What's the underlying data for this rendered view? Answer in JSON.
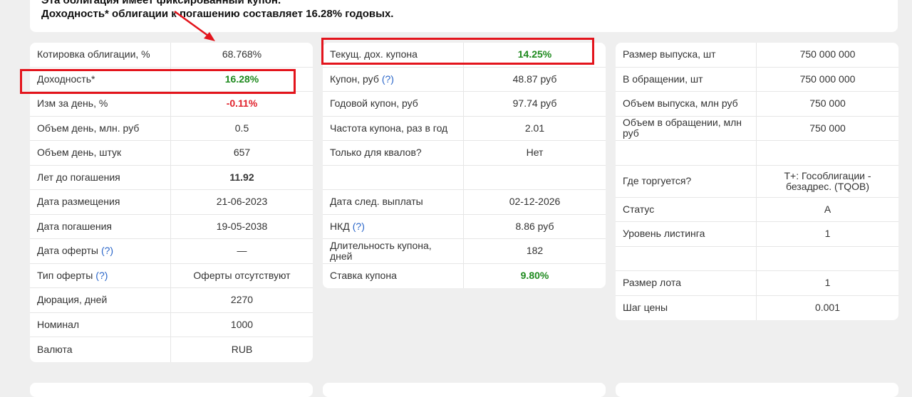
{
  "notice": {
    "line1": "Эта облигация имеет фиксированный купон.",
    "line2": "Доходность* облигации к погашению составляет 16.28% годовых."
  },
  "tables": [
    {
      "rows": [
        {
          "label": "Котировка облигации, %",
          "value": "68.768%"
        },
        {
          "label": "Доходность*",
          "value": "16.28%",
          "color": "#1e8a1e",
          "bold": true
        },
        {
          "label": "Изм за день, %",
          "value": "-0.11%",
          "color": "#e0212b",
          "bold": true
        },
        {
          "label": "Объем день, млн. руб",
          "value": "0.5"
        },
        {
          "label": "Объем день, штук",
          "value": "657"
        },
        {
          "label": "Лет до погашения",
          "value": "11.92",
          "bold": true
        },
        {
          "label": "Дата размещения",
          "value": "21-06-2023"
        },
        {
          "label": "Дата погашения",
          "value": "19-05-2038"
        },
        {
          "label": "Дата оферты",
          "hint": "(?)",
          "value": "—"
        },
        {
          "label": "Тип оферты",
          "hint": "(?)",
          "value": "Оферты отсутствуют"
        },
        {
          "label": "Дюрация, дней",
          "value": "2270"
        },
        {
          "label": "Номинал",
          "value": "1000"
        },
        {
          "label": "Валюта",
          "value": "RUB"
        }
      ]
    },
    {
      "rows": [
        {
          "label": "Текущ. дох. купона",
          "value": "14.25%",
          "color": "#1e8a1e",
          "bold": true
        },
        {
          "label": "Купон, руб",
          "hint": "(?)",
          "value": "48.87 руб"
        },
        {
          "label": "Годовой купон, руб",
          "value": "97.74 руб"
        },
        {
          "label": "Частота купона, раз в год",
          "value": "2.01"
        },
        {
          "label": "Только для квалов?",
          "value": "Нет"
        },
        {},
        {
          "label": "Дата след. выплаты",
          "value": "02-12-2026"
        },
        {
          "label": "НКД",
          "hint": "(?)",
          "value": "8.86 руб"
        },
        {
          "label": "Длительность купона, дней",
          "value": "182"
        },
        {
          "label": "Ставка купона",
          "value": "9.80%",
          "color": "#1e8a1e",
          "bold": true
        }
      ]
    },
    {
      "rows": [
        {
          "label": "Размер выпуска, шт",
          "value": "750 000 000"
        },
        {
          "label": "В обращении, шт",
          "value": "750 000 000"
        },
        {
          "label": "Объем выпуска, млн руб",
          "value": "750 000"
        },
        {
          "label": "Объем в обращении, млн руб",
          "value": "750 000"
        },
        {},
        {
          "label": "Где торгуется?",
          "value": "T+: Гособлигации - безадрес. (TQOB)"
        },
        {
          "label": "Статус",
          "value": "А"
        },
        {
          "label": "Уровень листинга",
          "value": "1"
        },
        {},
        {
          "label": "Размер лота",
          "value": "1"
        },
        {
          "label": "Шаг цены",
          "value": "0.001"
        }
      ]
    }
  ]
}
